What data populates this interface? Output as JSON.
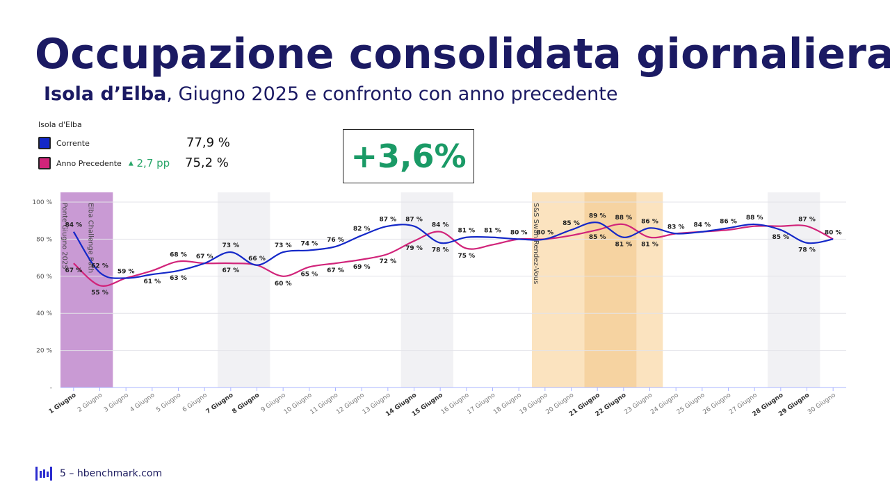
{
  "header": {
    "title": "Occupazione consolidata giornaliera",
    "subtitle_bold": "Isola d’Elba",
    "subtitle_rest": ", Giugno 2025 e confronto con anno precedente"
  },
  "legend": {
    "title": "Isola d'Elba",
    "current": {
      "label": "Corrente",
      "value": "77,9 %",
      "color": "#1428c8"
    },
    "previous": {
      "label": "Anno Precedente",
      "delta": "2,7 pp",
      "value": "75,2 %",
      "color": "#d1247a"
    }
  },
  "highlight": {
    "value": "+3,6%",
    "color": "#1a9a66"
  },
  "footer": {
    "page": "5",
    "separator": "–",
    "site": "hbenchmark.com"
  },
  "chart_data": {
    "type": "line",
    "categories": [
      "1 Giugno",
      "2 Giugno",
      "3 Giugno",
      "4 Giugno",
      "5 Giugno",
      "6 Giugno",
      "7 Giugno",
      "8 Giugno",
      "9 Giugno",
      "10 Giugno",
      "11 Giugno",
      "12 Giugno",
      "13 Giugno",
      "14 Giugno",
      "15 Giugno",
      "16 Giugno",
      "17 Giugno",
      "18 Giugno",
      "19 Giugno",
      "20 Giugno",
      "21 Giugno",
      "22 Giugno",
      "23 Giugno",
      "24 Giugno",
      "25 Giugno",
      "26 Giugno",
      "27 Giugno",
      "28 Giugno",
      "29 Giugno",
      "30 Giugno"
    ],
    "bold_categories": [
      "1 Giugno",
      "7 Giugno",
      "8 Giugno",
      "14 Giugno",
      "15 Giugno",
      "21 Giugno",
      "22 Giugno",
      "28 Giugno",
      "29 Giugno"
    ],
    "series": [
      {
        "name": "Corrente",
        "color": "#1428c8",
        "values": [
          84,
          62,
          59,
          61,
          63,
          67,
          73,
          66,
          73,
          74,
          76,
          82,
          87,
          87,
          78,
          81,
          81,
          80,
          80,
          85,
          89,
          81,
          86,
          83,
          84,
          86,
          88,
          85,
          78,
          80
        ],
        "labels": [
          "84 %",
          "62 %",
          "59 %",
          "61 %",
          "63 %",
          "67 %",
          "73 %",
          "66 %",
          "73 %",
          "74 %",
          "76 %",
          "82 %",
          "87 %",
          "87 %",
          "78 %",
          "81 %",
          "81 %",
          "80 %",
          "80 %",
          "85 %",
          "89 %",
          "81 %",
          "86 %",
          "83 %",
          "84 %",
          "86 %",
          "88 %",
          "85 %",
          "78 %",
          "80 %"
        ]
      },
      {
        "name": "Anno Precedente",
        "color": "#d1247a",
        "values": [
          67,
          55,
          59,
          63,
          68,
          67,
          67,
          66,
          60,
          65,
          67,
          69,
          72,
          79,
          84,
          75,
          77,
          80,
          80,
          82,
          85,
          88,
          81,
          83,
          84,
          85,
          87,
          87,
          87,
          80
        ],
        "labels": [
          "67 %",
          "55 %",
          "",
          "",
          "68 %",
          "",
          "67 %",
          "",
          "60 %",
          "65 %",
          "67 %",
          "69 %",
          "72 %",
          "79 %",
          "84 %",
          "75 %",
          "",
          "",
          "",
          "",
          "85 %",
          "88 %",
          "81 %",
          "",
          "",
          "",
          "",
          "",
          "87 %",
          ""
        ]
      }
    ],
    "ylim": [
      0,
      100
    ],
    "yticks": [
      0,
      20,
      40,
      60,
      80,
      100
    ],
    "ytick_labels": [
      "-",
      "20 %",
      "40 %",
      "60 %",
      "80 %",
      "100 %"
    ],
    "bands": [
      {
        "from": 1,
        "to": 2,
        "color": "#c99ad4"
      },
      {
        "from": 7,
        "to": 8,
        "color": "#f1f1f4"
      },
      {
        "from": 14,
        "to": 15,
        "color": "#f1f1f4"
      },
      {
        "from": 19,
        "to": 20,
        "color": "#fbe3bf"
      },
      {
        "from": 21,
        "to": 22,
        "color": "#f6d3a1"
      },
      {
        "from": 23,
        "to": 23,
        "color": "#fbe3bf"
      },
      {
        "from": 28,
        "to": 29,
        "color": "#f1f1f4"
      }
    ],
    "events": [
      {
        "label": "Ponte Giugno 2025",
        "day": 1
      },
      {
        "label": "Elba Challenge Bath",
        "day": 2
      },
      {
        "label": "S&S Swan Rendez-Vous",
        "day": 19
      }
    ],
    "grid": true
  }
}
